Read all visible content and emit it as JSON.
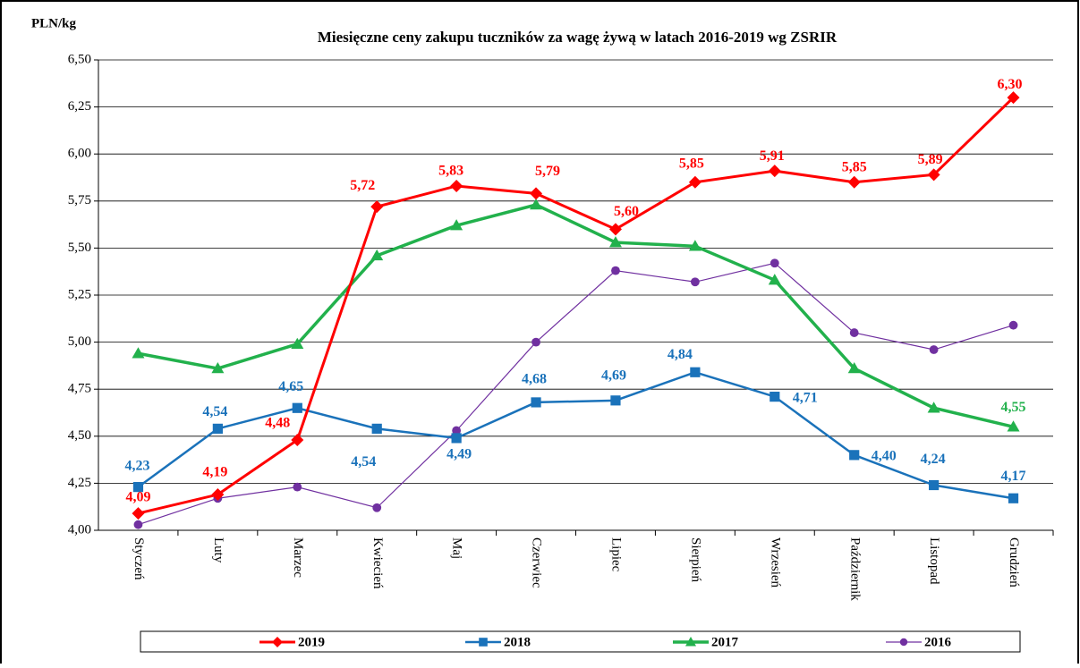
{
  "chart_data": {
    "type": "line",
    "title": "Miesięczne ceny zakupu tuczników za wagę żywą w latach 2016-2019 wg ZSRIR",
    "y_label": "PLN/kg",
    "categories": [
      "Styczeń",
      "Luty",
      "Marzec",
      "Kwiecień",
      "Maj",
      "Czerwiec",
      "Lipiec",
      "Sierpień",
      "Wrzesień",
      "Październik",
      "Listopad",
      "Grudzień"
    ],
    "ylim": [
      4.0,
      6.5
    ],
    "yticks": [
      {
        "value": 4.0,
        "label": "4,00"
      },
      {
        "value": 4.25,
        "label": "4,25"
      },
      {
        "value": 4.5,
        "label": "4,50"
      },
      {
        "value": 4.75,
        "label": "4,75"
      },
      {
        "value": 5.0,
        "label": "5,00"
      },
      {
        "value": 5.25,
        "label": "5,25"
      },
      {
        "value": 5.5,
        "label": "5,50"
      },
      {
        "value": 5.75,
        "label": "5,75"
      },
      {
        "value": 6.0,
        "label": "6,00"
      },
      {
        "value": 6.25,
        "label": "6,25"
      },
      {
        "value": 6.5,
        "label": "6,50"
      }
    ],
    "grid": true,
    "legend": "bottom",
    "series": [
      {
        "name": "2019",
        "color": "#ff0000",
        "marker": "diamond",
        "values": [
          4.09,
          4.19,
          4.48,
          5.72,
          5.83,
          5.79,
          5.6,
          5.85,
          5.91,
          5.85,
          5.89,
          6.3
        ],
        "value_labels": [
          "4,09",
          "4,19",
          "4,48",
          "5,72",
          "5,83",
          "5,79",
          "5,60",
          "5,85",
          "5,91",
          "5,85",
          "5,89",
          "6,30"
        ]
      },
      {
        "name": "2018",
        "color": "#1a72ba",
        "marker": "square",
        "values": [
          4.23,
          4.54,
          4.65,
          4.54,
          4.49,
          4.68,
          4.69,
          4.84,
          4.71,
          4.4,
          4.24,
          4.17
        ],
        "value_labels": [
          "4,23",
          "4,54",
          "4,65",
          "4,54",
          "4,49",
          "4,68",
          "4,69",
          "4,84",
          "4,71",
          "4,40",
          "4,24",
          "4,17"
        ]
      },
      {
        "name": "2017",
        "color": "#22b14c",
        "marker": "triangle",
        "values": [
          4.94,
          4.86,
          4.99,
          5.46,
          5.62,
          5.73,
          5.53,
          5.51,
          5.33,
          4.86,
          4.65,
          4.55
        ],
        "value_labels": [
          null,
          null,
          null,
          null,
          null,
          null,
          null,
          null,
          null,
          null,
          null,
          "4,55"
        ]
      },
      {
        "name": "2016",
        "color": "#7030a0",
        "marker": "circle",
        "values": [
          4.03,
          4.17,
          4.23,
          4.12,
          4.53,
          5.0,
          5.38,
          5.32,
          5.42,
          5.05,
          4.96,
          5.09
        ]
      }
    ]
  }
}
